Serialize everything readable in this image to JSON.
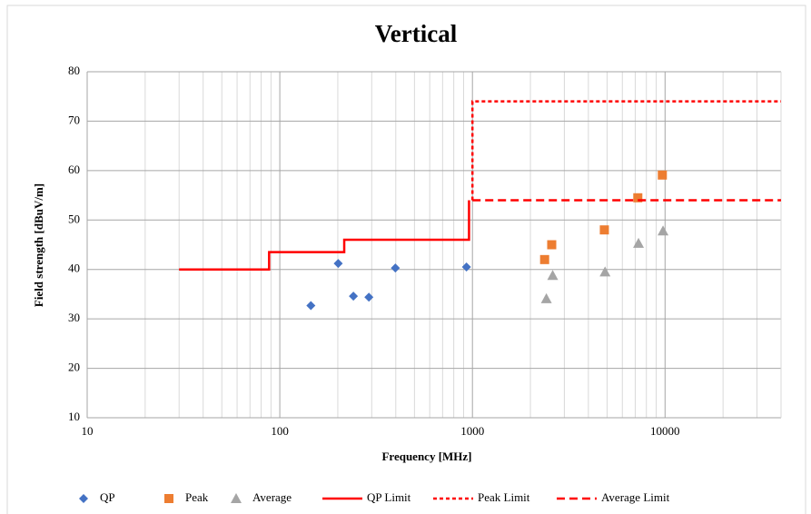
{
  "chart_data": {
    "type": "scatter",
    "title": "Vertical",
    "x_label": "Frequency  [MHz]",
    "y_label": "Field strength [dBuV/m]",
    "xlim": [
      10,
      40000
    ],
    "xticks": [
      10,
      100,
      1000,
      10000
    ],
    "xscale": "log",
    "ylim": [
      10,
      80
    ],
    "yticks": [
      10,
      20,
      30,
      40,
      50,
      60,
      70,
      80
    ],
    "grid": true,
    "legend": "bottom",
    "series": [
      {
        "name": "QP",
        "color": "#4472c4",
        "marker": "diamond",
        "x": [
          145,
          201,
          241,
          290,
          398,
          931
        ],
        "values": [
          32.7,
          41.2,
          34.6,
          34.4,
          40.3,
          40.5
        ]
      },
      {
        "name": "Peak",
        "color": "#ed7d31",
        "marker": "square",
        "x": [
          2370,
          2580,
          4840,
          7220,
          9680
        ],
        "values": [
          42,
          45,
          48,
          54.5,
          59.1
        ]
      },
      {
        "name": "Average",
        "color": "#a5a5a5",
        "marker": "triangle",
        "x": [
          2420,
          2610,
          4880,
          7280,
          9760
        ],
        "values": [
          34.1,
          38.8,
          39.5,
          45.3,
          47.8
        ]
      },
      {
        "name": "QP Limit",
        "color": "#ff0000",
        "line": "solid",
        "x": [
          30,
          88,
          88,
          216,
          216,
          960,
          960
        ],
        "values": [
          40,
          40,
          43.5,
          43.5,
          46,
          46,
          54
        ]
      },
      {
        "name": "Peak Limit",
        "color": "#ff0000",
        "line": "dashed",
        "x": [
          1000,
          1000,
          40000
        ],
        "values": [
          54,
          74,
          74
        ]
      },
      {
        "name": "Average Limit",
        "color": "#ff0000",
        "line": "longdash",
        "x": [
          1000,
          40000
        ],
        "values": [
          54,
          54
        ]
      }
    ]
  }
}
